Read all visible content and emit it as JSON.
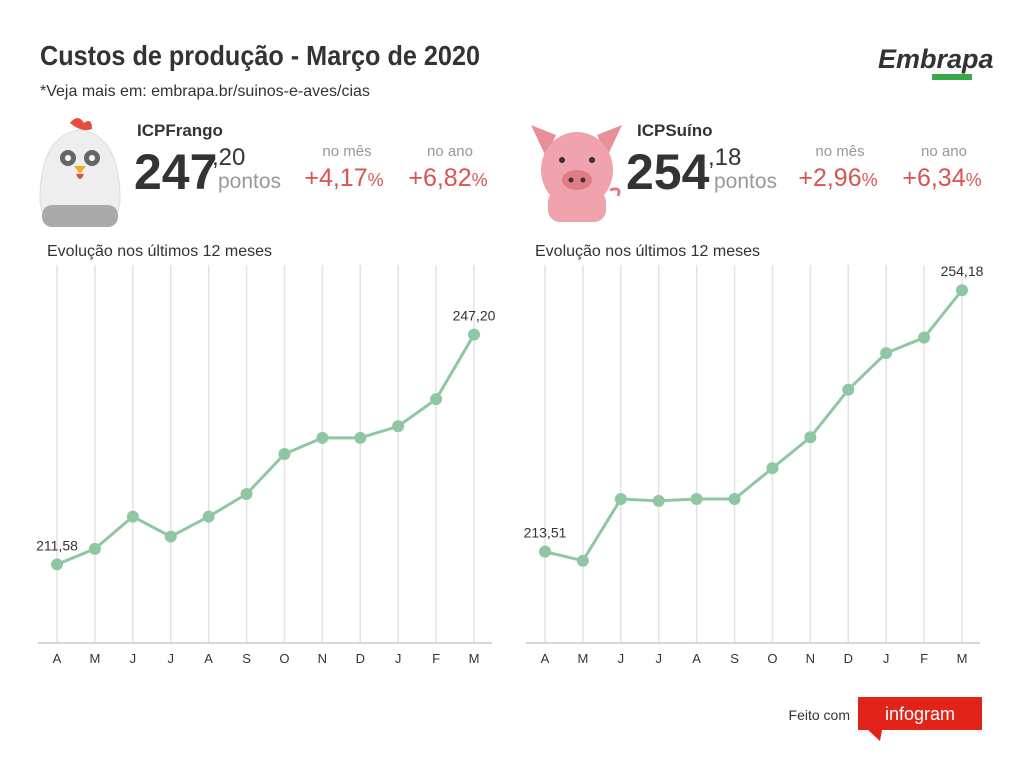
{
  "header": {
    "title": "Custos de produção - Março de 2020",
    "subtitle": "*Veja mais em: embrapa.br/suinos-e-aves/cias",
    "logo": "Embrapa"
  },
  "panels": [
    {
      "name": "ICPFrango",
      "integer": "247",
      "decimal": ",20",
      "unit": "pontos",
      "month_label": "no mês",
      "month_value": "+4,17",
      "month_unit": "%",
      "year_label": "no ano",
      "year_value": "+6,82",
      "year_unit": "%"
    },
    {
      "name": "ICPSuíno",
      "integer": "254",
      "decimal": ",18",
      "unit": "pontos",
      "month_label": "no mês",
      "month_value": "+2,96",
      "month_unit": "%",
      "year_label": "no ano",
      "year_value": "+6,34",
      "year_unit": "%"
    }
  ],
  "chart_data": [
    {
      "type": "line",
      "title": "Evolução nos últimos 12 meses",
      "categories": [
        "A",
        "M",
        "J",
        "J",
        "A",
        "S",
        "O",
        "N",
        "D",
        "J",
        "F",
        "M"
      ],
      "values": [
        211.58,
        214.0,
        219.0,
        215.9,
        219.0,
        222.5,
        228.7,
        231.2,
        231.2,
        233.0,
        237.2,
        247.2
      ],
      "value_labels": [
        "211,58",
        null,
        null,
        null,
        null,
        null,
        null,
        null,
        null,
        null,
        null,
        "247,20"
      ],
      "color": "#8fc7a3",
      "ylim": [
        199.4,
        258.0
      ],
      "grid": true
    },
    {
      "type": "line",
      "title": "Evolução nos últimos 12 meses",
      "categories": [
        "A",
        "M",
        "J",
        "J",
        "A",
        "S",
        "O",
        "N",
        "D",
        "J",
        "F",
        "M"
      ],
      "values": [
        213.51,
        212.1,
        221.7,
        221.4,
        221.7,
        221.7,
        226.5,
        231.3,
        238.7,
        244.4,
        246.8,
        254.18
      ],
      "value_labels": [
        "213,51",
        null,
        null,
        null,
        null,
        null,
        null,
        null,
        null,
        null,
        null,
        "254,18"
      ],
      "color": "#8fc7a3",
      "ylim": [
        199.3,
        258.1
      ],
      "grid": true
    }
  ],
  "footer": {
    "made_with": "Feito com",
    "brand": "infogram"
  }
}
